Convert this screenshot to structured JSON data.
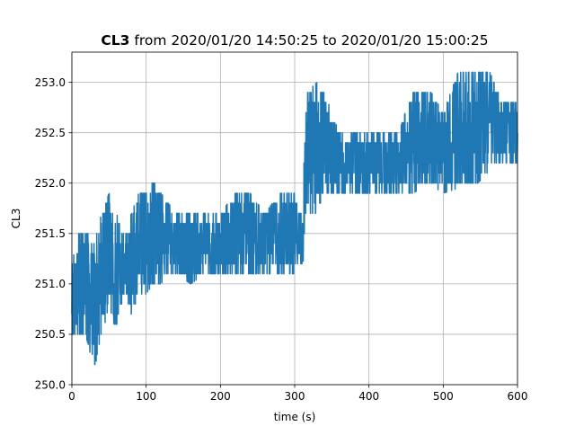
{
  "chart_data": {
    "type": "line",
    "title_bold": "CL3",
    "title_rest": " from 2020/01/20 14:50:25 to 2020/01/20 15:00:25",
    "xlabel": "time (s)",
    "ylabel": "CL3",
    "xlim": [
      0,
      600
    ],
    "ylim": [
      250.0,
      253.3
    ],
    "xticks": [
      0,
      100,
      200,
      300,
      400,
      500,
      600
    ],
    "xtick_labels": [
      "0",
      "100",
      "200",
      "300",
      "400",
      "500",
      "600"
    ],
    "yticks": [
      250.0,
      250.5,
      251.0,
      251.5,
      252.0,
      252.5,
      253.0
    ],
    "ytick_labels": [
      "250.0",
      "250.5",
      "251.0",
      "251.5",
      "252.0",
      "252.5",
      "253.0"
    ],
    "grid": true,
    "series": [
      {
        "color": "#1f77b4",
        "envelope": [
          {
            "x": 0,
            "low": 250.5,
            "high": 251.2
          },
          {
            "x": 10,
            "low": 250.45,
            "high": 251.55
          },
          {
            "x": 20,
            "low": 250.45,
            "high": 251.55
          },
          {
            "x": 30,
            "low": 250.15,
            "high": 251.4
          },
          {
            "x": 40,
            "low": 250.45,
            "high": 251.7
          },
          {
            "x": 50,
            "low": 250.8,
            "high": 251.9
          },
          {
            "x": 60,
            "low": 250.5,
            "high": 251.7
          },
          {
            "x": 70,
            "low": 250.9,
            "high": 251.5
          },
          {
            "x": 80,
            "low": 250.7,
            "high": 251.7
          },
          {
            "x": 90,
            "low": 250.85,
            "high": 251.9
          },
          {
            "x": 100,
            "low": 250.9,
            "high": 251.9
          },
          {
            "x": 110,
            "low": 251.0,
            "high": 252.05
          },
          {
            "x": 120,
            "low": 251.0,
            "high": 251.9
          },
          {
            "x": 130,
            "low": 251.1,
            "high": 251.8
          },
          {
            "x": 140,
            "low": 251.1,
            "high": 251.7
          },
          {
            "x": 160,
            "low": 251.0,
            "high": 251.7
          },
          {
            "x": 180,
            "low": 251.1,
            "high": 251.7
          },
          {
            "x": 200,
            "low": 251.1,
            "high": 251.7
          },
          {
            "x": 220,
            "low": 251.1,
            "high": 251.9
          },
          {
            "x": 240,
            "low": 251.1,
            "high": 251.9
          },
          {
            "x": 260,
            "low": 251.1,
            "high": 251.7
          },
          {
            "x": 280,
            "low": 251.1,
            "high": 251.9
          },
          {
            "x": 300,
            "low": 251.1,
            "high": 251.9
          },
          {
            "x": 310,
            "low": 251.1,
            "high": 251.7
          },
          {
            "x": 316,
            "low": 251.6,
            "high": 252.9
          },
          {
            "x": 330,
            "low": 251.7,
            "high": 253.0
          },
          {
            "x": 340,
            "low": 251.9,
            "high": 252.9
          },
          {
            "x": 360,
            "low": 251.9,
            "high": 252.5
          },
          {
            "x": 380,
            "low": 251.9,
            "high": 252.5
          },
          {
            "x": 400,
            "low": 251.9,
            "high": 252.5
          },
          {
            "x": 420,
            "low": 251.9,
            "high": 252.5
          },
          {
            "x": 440,
            "low": 251.9,
            "high": 252.5
          },
          {
            "x": 460,
            "low": 251.9,
            "high": 252.95
          },
          {
            "x": 480,
            "low": 252.0,
            "high": 252.95
          },
          {
            "x": 500,
            "low": 251.9,
            "high": 252.7
          },
          {
            "x": 520,
            "low": 251.95,
            "high": 253.1
          },
          {
            "x": 540,
            "low": 251.95,
            "high": 253.15
          },
          {
            "x": 560,
            "low": 252.1,
            "high": 253.15
          },
          {
            "x": 580,
            "low": 252.2,
            "high": 252.8
          },
          {
            "x": 600,
            "low": 252.2,
            "high": 252.8
          }
        ]
      }
    ]
  }
}
